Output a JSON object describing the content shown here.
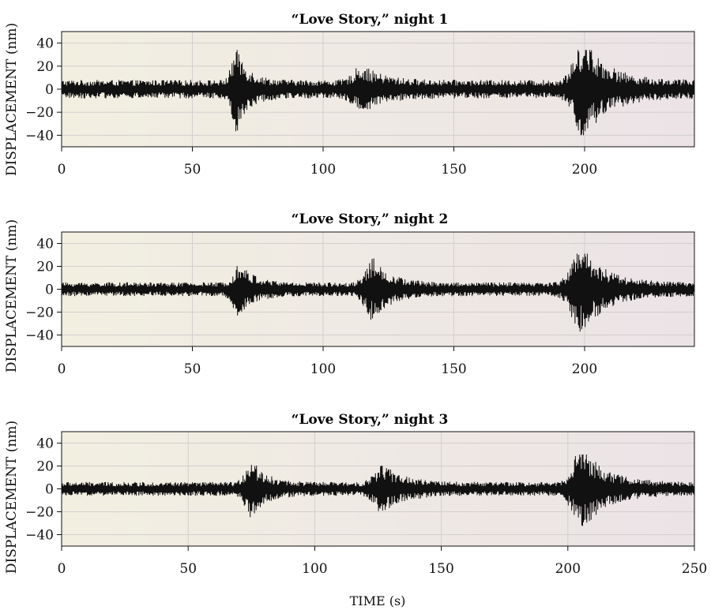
{
  "figure": {
    "xlabel": "TIME (s)",
    "colors": {
      "trace": "#111111",
      "bg_left": "#f2efe1",
      "bg_right": "#ebe3e6",
      "grid": "#cfcac8",
      "axis": "#111111"
    }
  },
  "chart_data": [
    {
      "type": "line",
      "title": "“Love Story,” night 1",
      "ylabel": "DISPLACEMENT (nm)",
      "xlabel": "",
      "xlim": [
        0,
        242
      ],
      "ylim": [
        -50,
        50
      ],
      "xticks": [
        0,
        50,
        100,
        150,
        200
      ],
      "yticks": [
        40,
        20,
        0,
        -20,
        -40
      ],
      "grid": true,
      "background_noise_amplitude_nm": 8,
      "bursts": [
        {
          "center": 67,
          "amplitude": 32,
          "width": 4
        },
        {
          "center": 115,
          "amplitude": 16,
          "width": 7
        },
        {
          "center": 200,
          "amplitude": 40,
          "width": 8
        }
      ],
      "series": [
        {
          "values_note": "",
          "peak_min": -40,
          "peak_max": 34
        }
      ]
    },
    {
      "type": "line",
      "title": "“Love Story,” night 2",
      "ylabel": "DISPLACEMENT (nm)",
      "xlabel": "",
      "xlim": [
        0,
        242
      ],
      "ylim": [
        -50,
        50
      ],
      "xticks": [
        0,
        50,
        100,
        150,
        200
      ],
      "yticks": [
        40,
        20,
        0,
        -20,
        -40
      ],
      "grid": true,
      "background_noise_amplitude_nm": 6,
      "bursts": [
        {
          "center": 68,
          "amplitude": 20,
          "width": 5
        },
        {
          "center": 119,
          "amplitude": 24,
          "width": 6
        },
        {
          "center": 199,
          "amplitude": 36,
          "width": 8
        }
      ],
      "series": [
        {
          "values_note": "",
          "peak_min": -37,
          "peak_max": 31
        }
      ]
    },
    {
      "type": "line",
      "title": "“Love Story,” night 3",
      "ylabel": "DISPLACEMENT (nm)",
      "xlabel": "TIME (s)",
      "xlim": [
        0,
        250
      ],
      "ylim": [
        -50,
        50
      ],
      "xticks": [
        0,
        50,
        100,
        150,
        200,
        250
      ],
      "yticks": [
        40,
        20,
        0,
        -20,
        -40
      ],
      "grid": true,
      "background_noise_amplitude_nm": 6,
      "bursts": [
        {
          "center": 75,
          "amplitude": 23,
          "width": 5
        },
        {
          "center": 127,
          "amplitude": 18,
          "width": 7
        },
        {
          "center": 206,
          "amplitude": 34,
          "width": 8
        }
      ],
      "series": [
        {
          "values_note": "",
          "peak_min": -36,
          "peak_max": 30
        }
      ]
    }
  ]
}
